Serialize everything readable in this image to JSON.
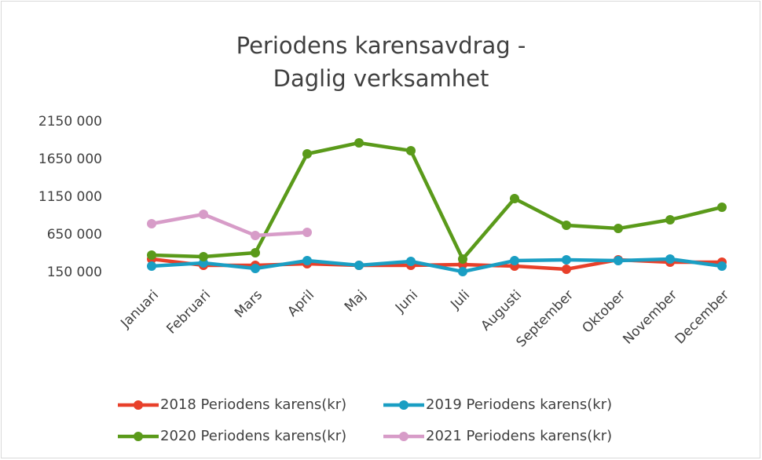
{
  "chart_data": {
    "type": "line",
    "title": [
      "Periodens karensavdrag -",
      "Daglig verksamhet"
    ],
    "categories": [
      "Januari",
      "Februari",
      "Mars",
      "April",
      "Maj",
      "Juni",
      "Juli",
      "Augusti",
      "September",
      "Oktober",
      "November",
      "December"
    ],
    "series": [
      {
        "name": "2018 Periodens karens(kr)",
        "color": "#e8402a",
        "values": [
          327000,
          244000,
          244000,
          265000,
          244000,
          244000,
          254000,
          233000,
          192000,
          317000,
          285000,
          285000
        ]
      },
      {
        "name": "2019 Periodens karens(kr)",
        "color": "#1a9ec3",
        "values": [
          233000,
          275000,
          202000,
          306000,
          244000,
          296000,
          160000,
          306000,
          317000,
          306000,
          327000,
          233000
        ]
      },
      {
        "name": "2020 Periodens karens(kr)",
        "color": "#5a9a1a",
        "values": [
          379000,
          358000,
          410000,
          1723000,
          1869000,
          1765000,
          327000,
          1129000,
          775000,
          733000,
          848000,
          1015000
        ]
      },
      {
        "name": "2021 Periodens karens(kr)",
        "color": "#d79cc8",
        "values": [
          796000,
          921000,
          640000,
          681000,
          null,
          null,
          null,
          null,
          null,
          null,
          null,
          null
        ]
      }
    ],
    "ylim": [
      150000,
      2150000
    ],
    "yticks": [
      {
        "value": 150000,
        "label": "150 000"
      },
      {
        "value": 650000,
        "label": "650 000"
      },
      {
        "value": 1150000,
        "label": "1150 000"
      },
      {
        "value": 1650000,
        "label": "1650 000"
      },
      {
        "value": 2150000,
        "label": "2150 000"
      }
    ],
    "legend": "bottom"
  }
}
